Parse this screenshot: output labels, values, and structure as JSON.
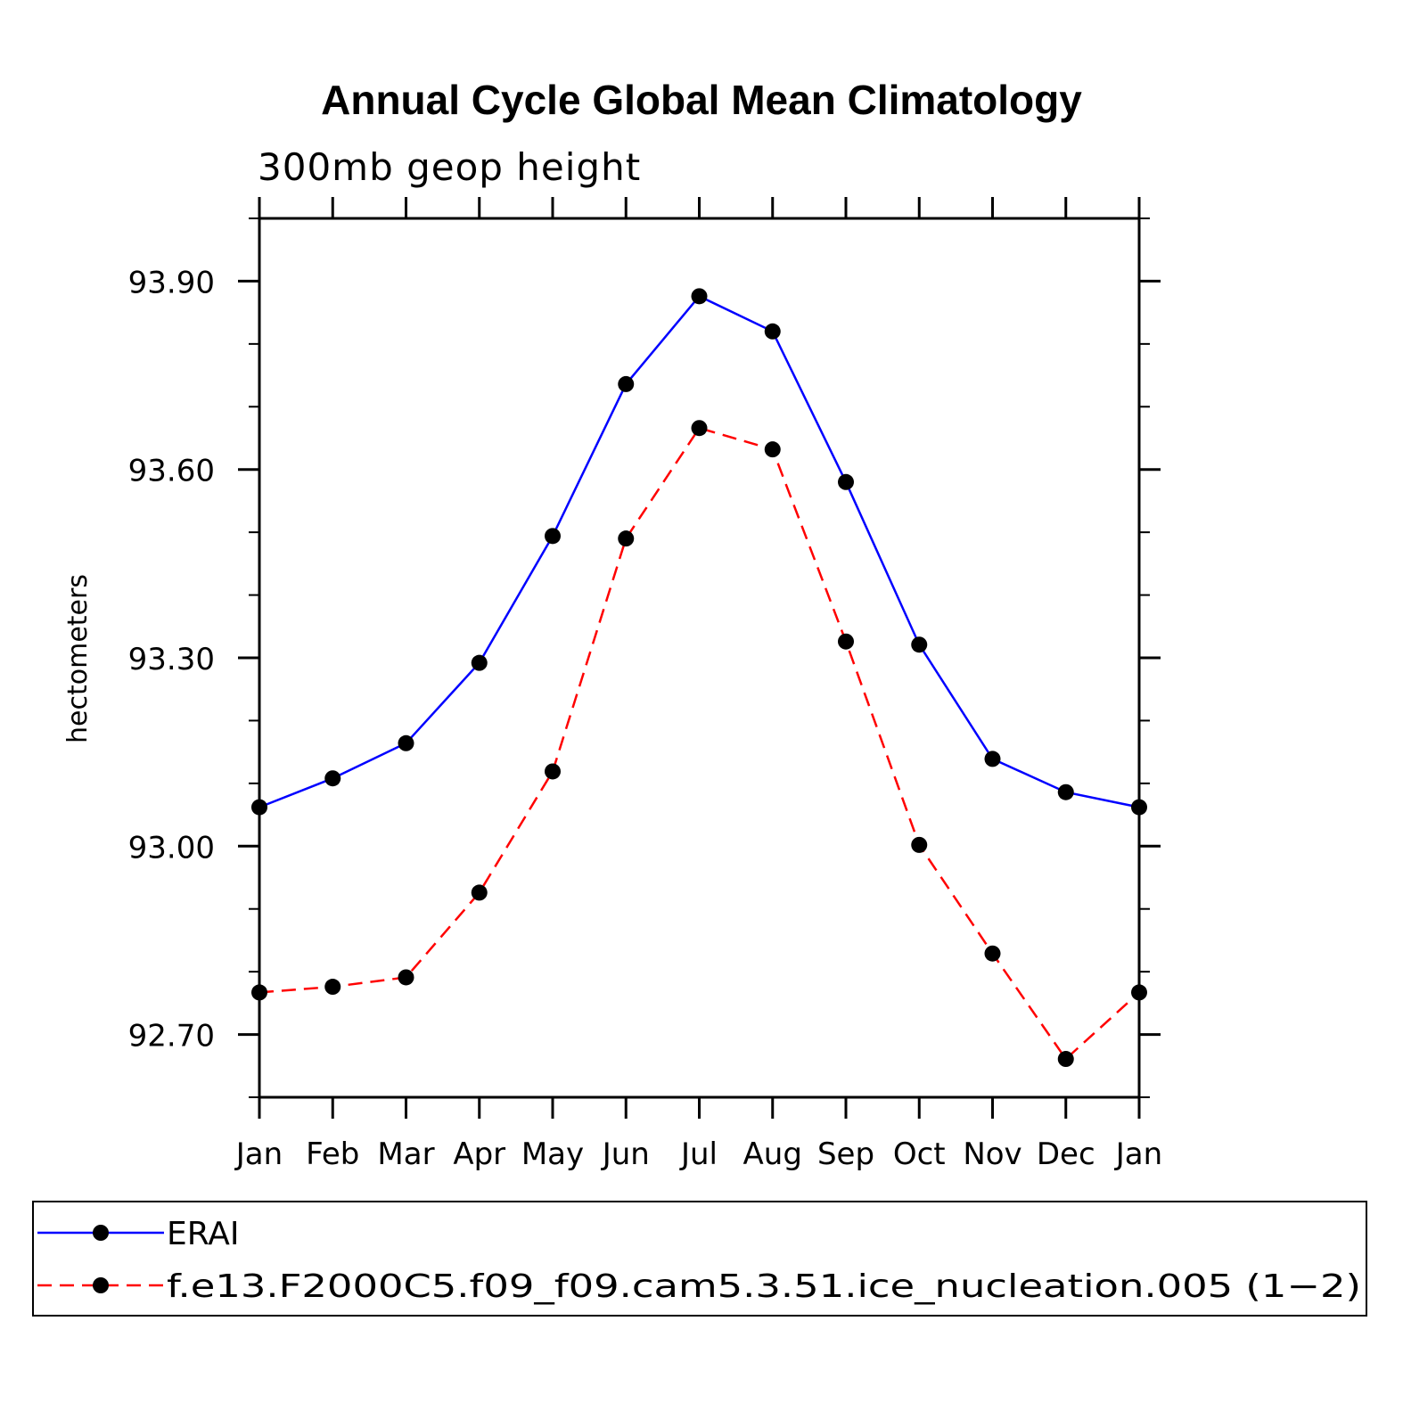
{
  "chart_data": {
    "type": "line",
    "title": "Annual Cycle Global Mean Climatology",
    "subtitle": "300mb geop height",
    "xlabel": "",
    "ylabel": "hectometers",
    "categories": [
      "Jan",
      "Feb",
      "Mar",
      "Apr",
      "May",
      "Jun",
      "Jul",
      "Aug",
      "Sep",
      "Oct",
      "Nov",
      "Dec",
      "Jan"
    ],
    "ylim": [
      92.6,
      94.0
    ],
    "yticks": [
      92.7,
      93.0,
      93.3,
      93.6,
      93.9
    ],
    "ytick_labels": [
      "92.70",
      "93.00",
      "93.30",
      "93.60",
      "93.90"
    ],
    "y_minor_step": 0.1,
    "grid": false,
    "legend_position": "bottom",
    "series": [
      {
        "name": "ERAI",
        "color": "#0000ff",
        "dash": "solid",
        "values": [
          93.062,
          93.108,
          93.164,
          93.292,
          93.494,
          93.736,
          93.876,
          93.82,
          93.58,
          93.321,
          93.139,
          93.086,
          93.062
        ]
      },
      {
        "name": "f.e13.F2000C5.f09_f09.cam5.3.51.ice_nucleation.005 (1−2)",
        "color": "#ff0000",
        "dash": "dashed",
        "values": [
          92.767,
          92.776,
          92.791,
          92.926,
          93.119,
          93.49,
          93.666,
          93.632,
          93.326,
          93.002,
          92.829,
          92.661,
          92.767
        ]
      }
    ]
  }
}
